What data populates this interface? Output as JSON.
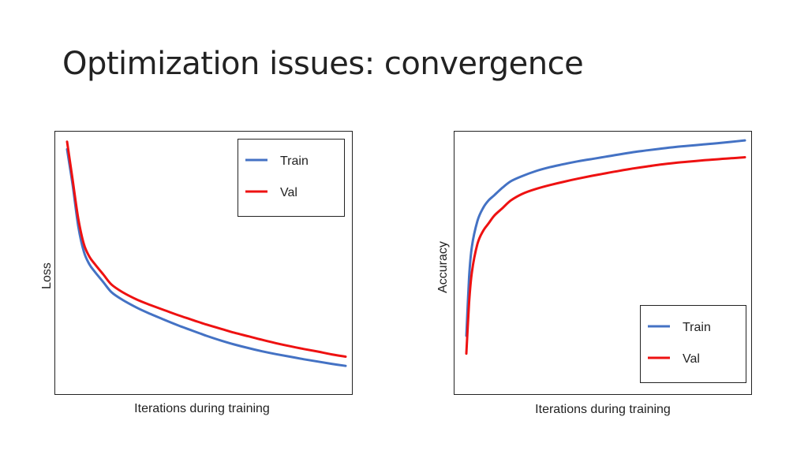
{
  "slide": {
    "title": "Optimization issues: convergence"
  },
  "colors": {
    "train": "#4472c4",
    "val": "#ee1111",
    "frame": "#222222"
  },
  "chart_data": [
    {
      "type": "line",
      "title": "",
      "xlabel": "Iterations during training",
      "ylabel": "Loss",
      "ticks": "none",
      "grid": false,
      "legend_position": "top-right",
      "xlim": [
        0,
        100
      ],
      "ylim": [
        0,
        100
      ],
      "series": [
        {
          "name": "Train",
          "color": "#4472c4",
          "x": [
            0,
            2,
            4,
            6,
            8,
            10,
            13,
            16,
            20,
            25,
            30,
            35,
            40,
            45,
            50,
            55,
            60,
            65,
            70,
            75,
            80,
            85,
            90,
            95,
            100
          ],
          "y": [
            94,
            80,
            64,
            54,
            49,
            46,
            42,
            38,
            35,
            32,
            29.5,
            27.2,
            25,
            23,
            21,
            19.2,
            17.6,
            16.2,
            14.9,
            13.8,
            12.8,
            11.8,
            10.9,
            10,
            9.2
          ]
        },
        {
          "name": "Val",
          "color": "#ee1111",
          "x": [
            0,
            2,
            4,
            6,
            8,
            10,
            13,
            16,
            20,
            25,
            30,
            35,
            40,
            45,
            50,
            55,
            60,
            65,
            70,
            75,
            80,
            85,
            90,
            95,
            100
          ],
          "y": [
            97,
            82,
            67,
            57,
            52,
            49,
            45,
            41,
            38,
            35.2,
            33,
            31,
            29,
            27.2,
            25.4,
            23.8,
            22.2,
            20.8,
            19.4,
            18.1,
            16.9,
            15.8,
            14.8,
            13.7,
            12.8
          ]
        }
      ]
    },
    {
      "type": "line",
      "title": "",
      "xlabel": "Iterations during training",
      "ylabel": "Accuracy",
      "ticks": "none",
      "grid": false,
      "legend_position": "bottom-right",
      "xlim": [
        0,
        100
      ],
      "ylim": [
        0,
        100
      ],
      "series": [
        {
          "name": "Train",
          "color": "#4472c4",
          "x": [
            0,
            1,
            2,
            4,
            6,
            8,
            10,
            13,
            16,
            20,
            25,
            30,
            35,
            40,
            45,
            50,
            55,
            60,
            65,
            70,
            75,
            80,
            85,
            90,
            95,
            100
          ],
          "y": [
            21,
            44,
            56,
            66,
            71,
            74,
            76,
            79,
            81.5,
            83.5,
            85.5,
            87,
            88.2,
            89.3,
            90.2,
            91.1,
            92,
            92.9,
            93.6,
            94.3,
            94.9,
            95.4,
            95.9,
            96.4,
            96.9,
            97.5
          ]
        },
        {
          "name": "Val",
          "color": "#ee1111",
          "x": [
            0,
            1,
            2,
            4,
            6,
            8,
            10,
            13,
            16,
            20,
            25,
            30,
            35,
            40,
            45,
            50,
            55,
            60,
            65,
            70,
            75,
            80,
            85,
            90,
            95,
            100
          ],
          "y": [
            14,
            34,
            46,
            57,
            62,
            65,
            68,
            71,
            74,
            76.5,
            78.5,
            80,
            81.3,
            82.5,
            83.6,
            84.6,
            85.6,
            86.5,
            87.3,
            88.1,
            88.7,
            89.2,
            89.7,
            90.1,
            90.5,
            90.9
          ]
        }
      ]
    }
  ]
}
